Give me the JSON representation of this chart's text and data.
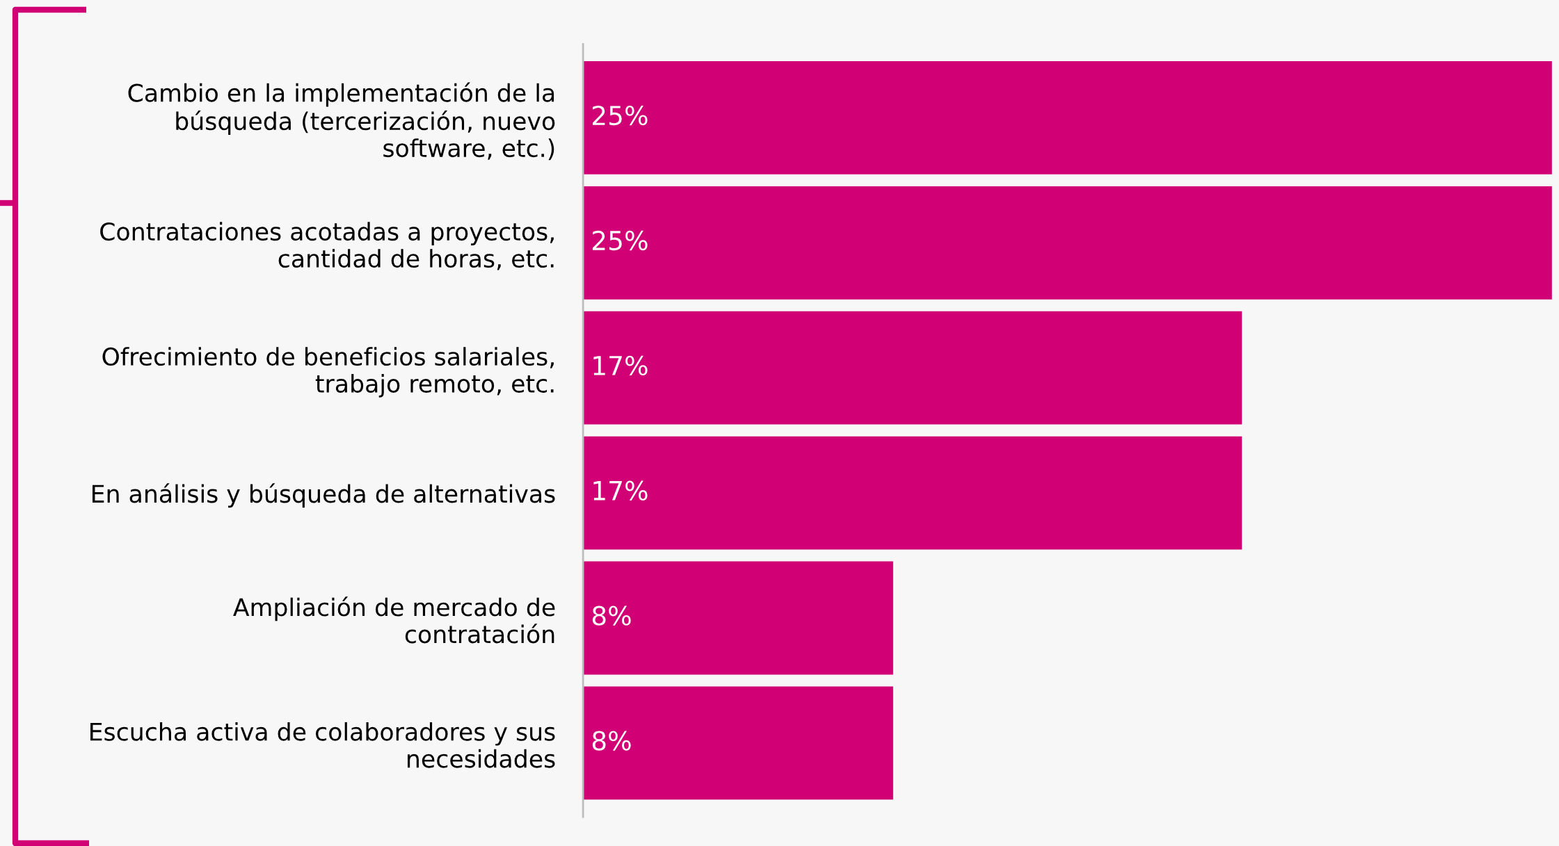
{
  "chart_data": {
    "type": "bar",
    "orientation": "horizontal",
    "categories": [
      "Cambio en la implementación de la\nbúsqueda (tercerización, nuevo\nsoftware, etc.)",
      "Contrataciones acotadas a proyectos,\ncantidad de horas, etc.",
      "Ofrecimiento de beneficios salariales,\ntrabajo remoto, etc.",
      "En análisis y búsqueda de alternativas",
      "Ampliación de mercado de\ncontratación",
      "Escucha activa de colaboradores y sus\nnecesidades"
    ],
    "values": [
      25,
      25,
      17,
      17,
      8,
      8
    ],
    "color": "#d10074",
    "xlim": [
      0,
      25
    ],
    "data_labels": true,
    "value_labels": [
      "25%",
      "25%",
      "17%",
      "17%",
      "8%",
      "8%"
    ],
    "tick_labels": "y"
  }
}
